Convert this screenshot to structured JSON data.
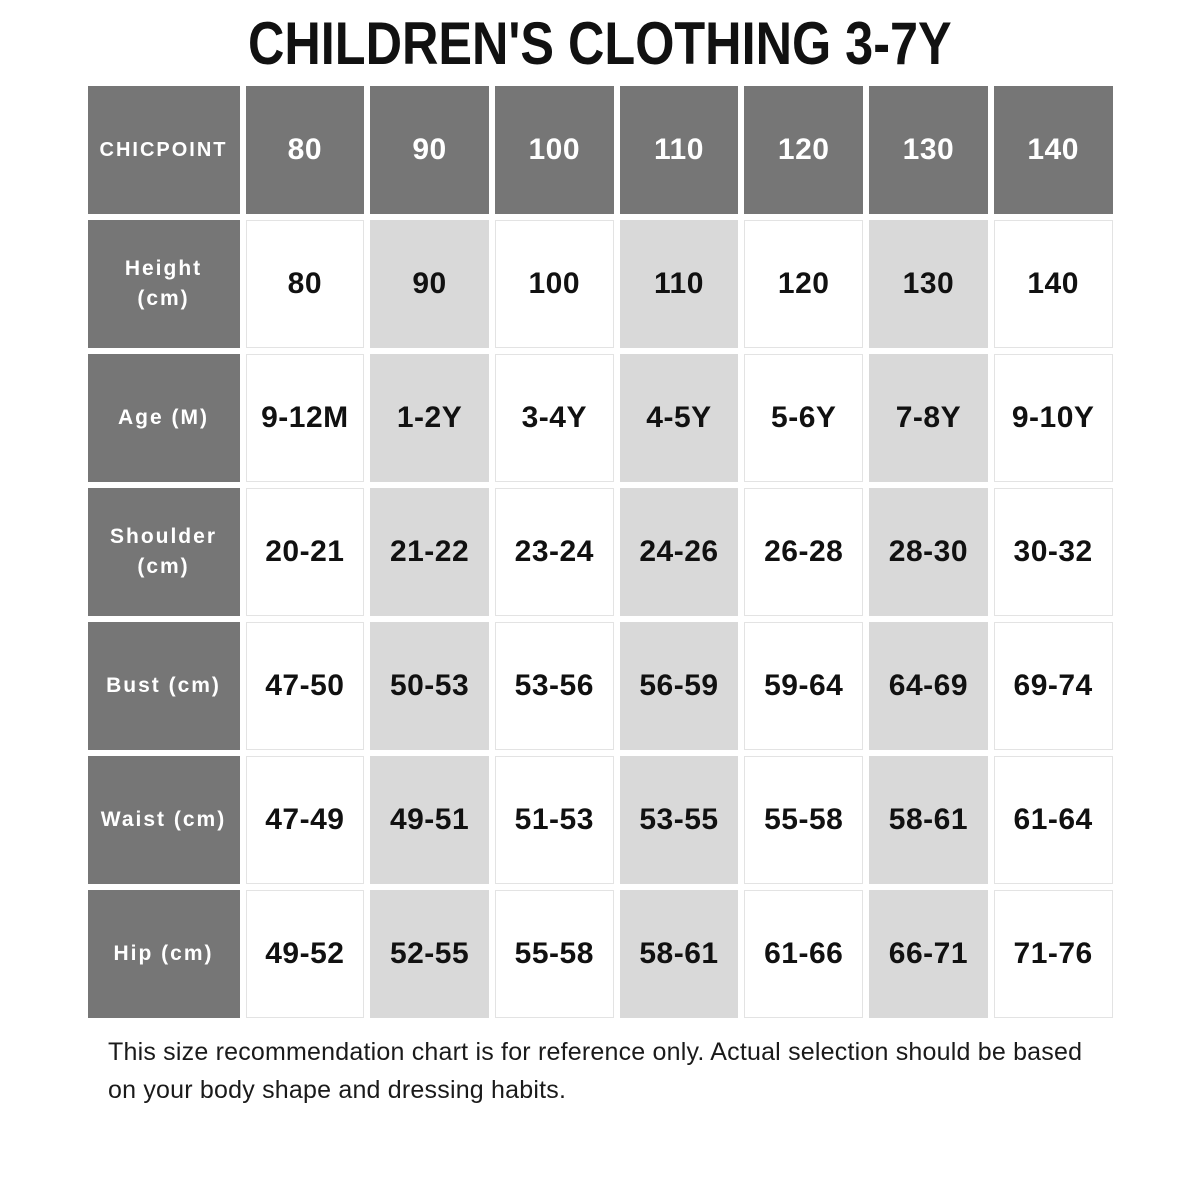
{
  "chart_data": {
    "type": "table",
    "title": "CHILDREN'S CLOTHING 3-7Y",
    "columns": [
      "CHICPOINT",
      "80",
      "90",
      "100",
      "110",
      "120",
      "130",
      "140"
    ],
    "rows": [
      {
        "label": "Height (cm)",
        "values": [
          "80",
          "90",
          "100",
          "110",
          "120",
          "130",
          "140"
        ]
      },
      {
        "label": "Age (M)",
        "values": [
          "9-12M",
          "1-2Y",
          "3-4Y",
          "4-5Y",
          "5-6Y",
          "7-8Y",
          "9-10Y"
        ]
      },
      {
        "label": "Shoulder (cm)",
        "values": [
          "20-21",
          "21-22",
          "23-24",
          "24-26",
          "26-28",
          "28-30",
          "30-32"
        ]
      },
      {
        "label": "Bust (cm)",
        "values": [
          "47-50",
          "50-53",
          "53-56",
          "56-59",
          "59-64",
          "64-69",
          "69-74"
        ]
      },
      {
        "label": "Waist (cm)",
        "values": [
          "47-49",
          "49-51",
          "51-53",
          "53-55",
          "55-58",
          "58-61",
          "61-64"
        ]
      },
      {
        "label": "Hip (cm)",
        "values": [
          "49-52",
          "52-55",
          "55-58",
          "58-61",
          "61-66",
          "66-71",
          "71-76"
        ]
      }
    ],
    "layout": {
      "shaded_columns": [
        "90",
        "110",
        "130"
      ],
      "header_style": "dark",
      "legend_position": "none",
      "grid": "cell-gaps"
    }
  },
  "footer": {
    "line1": "This size recommendation chart is for reference only. Actual selection should be based",
    "line2": "on your body shape and dressing habits."
  },
  "colors": {
    "header_dark": "#767676",
    "shaded_column": "#d9d9d9",
    "cell_border": "#e3e3e3",
    "text": "#111111",
    "background": "#ffffff"
  }
}
